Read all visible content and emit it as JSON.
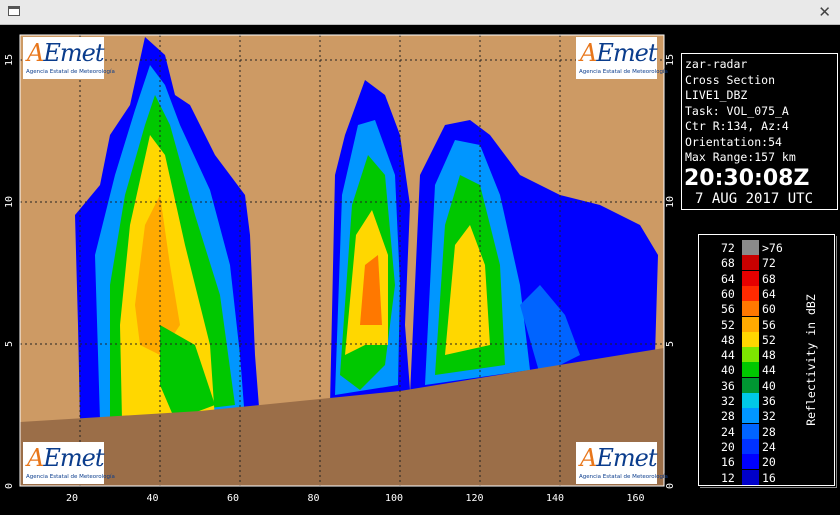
{
  "info": {
    "lines": [
      "zar-radar",
      "Cross Section",
      "LIVE1_DBZ",
      "Task: VOL_075_A",
      "Ctr R:134, Az:4",
      "Orientation:54",
      "Max Range:157 km"
    ],
    "time": "20:30:08Z",
    "date": "7 AUG 2017 UTC"
  },
  "axes": {
    "x_ticks": [
      "20",
      "40",
      "60",
      "80",
      "100",
      "120",
      "140",
      "160"
    ],
    "y_ticks": [
      "0",
      "5",
      "10",
      "15"
    ]
  },
  "logo": {
    "text": "AEmet",
    "subtitle": "Agencia Estatal de Meteorología"
  },
  "legend": {
    "title": "Reflectivity in dBZ",
    "rows": [
      {
        "lo": "72",
        "hi": ">76",
        "color": "#8a8a8a"
      },
      {
        "lo": "68",
        "hi": "72",
        "color": "#c80000"
      },
      {
        "lo": "64",
        "hi": "68",
        "color": "#e60000"
      },
      {
        "lo": "60",
        "hi": "64",
        "color": "#ff2a00"
      },
      {
        "lo": "56",
        "hi": "60",
        "color": "#ff7800"
      },
      {
        "lo": "52",
        "hi": "56",
        "color": "#ffaa00"
      },
      {
        "lo": "48",
        "hi": "52",
        "color": "#ffd700"
      },
      {
        "lo": "44",
        "hi": "48",
        "color": "#7de600"
      },
      {
        "lo": "40",
        "hi": "44",
        "color": "#00c800"
      },
      {
        "lo": "36",
        "hi": "40",
        "color": "#009632"
      },
      {
        "lo": "32",
        "hi": "36",
        "color": "#00c8e6"
      },
      {
        "lo": "28",
        "hi": "32",
        "color": "#0096ff"
      },
      {
        "lo": "24",
        "hi": "28",
        "color": "#0064ff"
      },
      {
        "lo": "20",
        "hi": "24",
        "color": "#0032ff"
      },
      {
        "lo": "16",
        "hi": "20",
        "color": "#0000ff"
      },
      {
        "lo": "12",
        "hi": "16",
        "color": "#0000c8"
      }
    ]
  },
  "colors": {
    "background_plot": "#cd9a64",
    "terrain": "#9b6e48"
  }
}
